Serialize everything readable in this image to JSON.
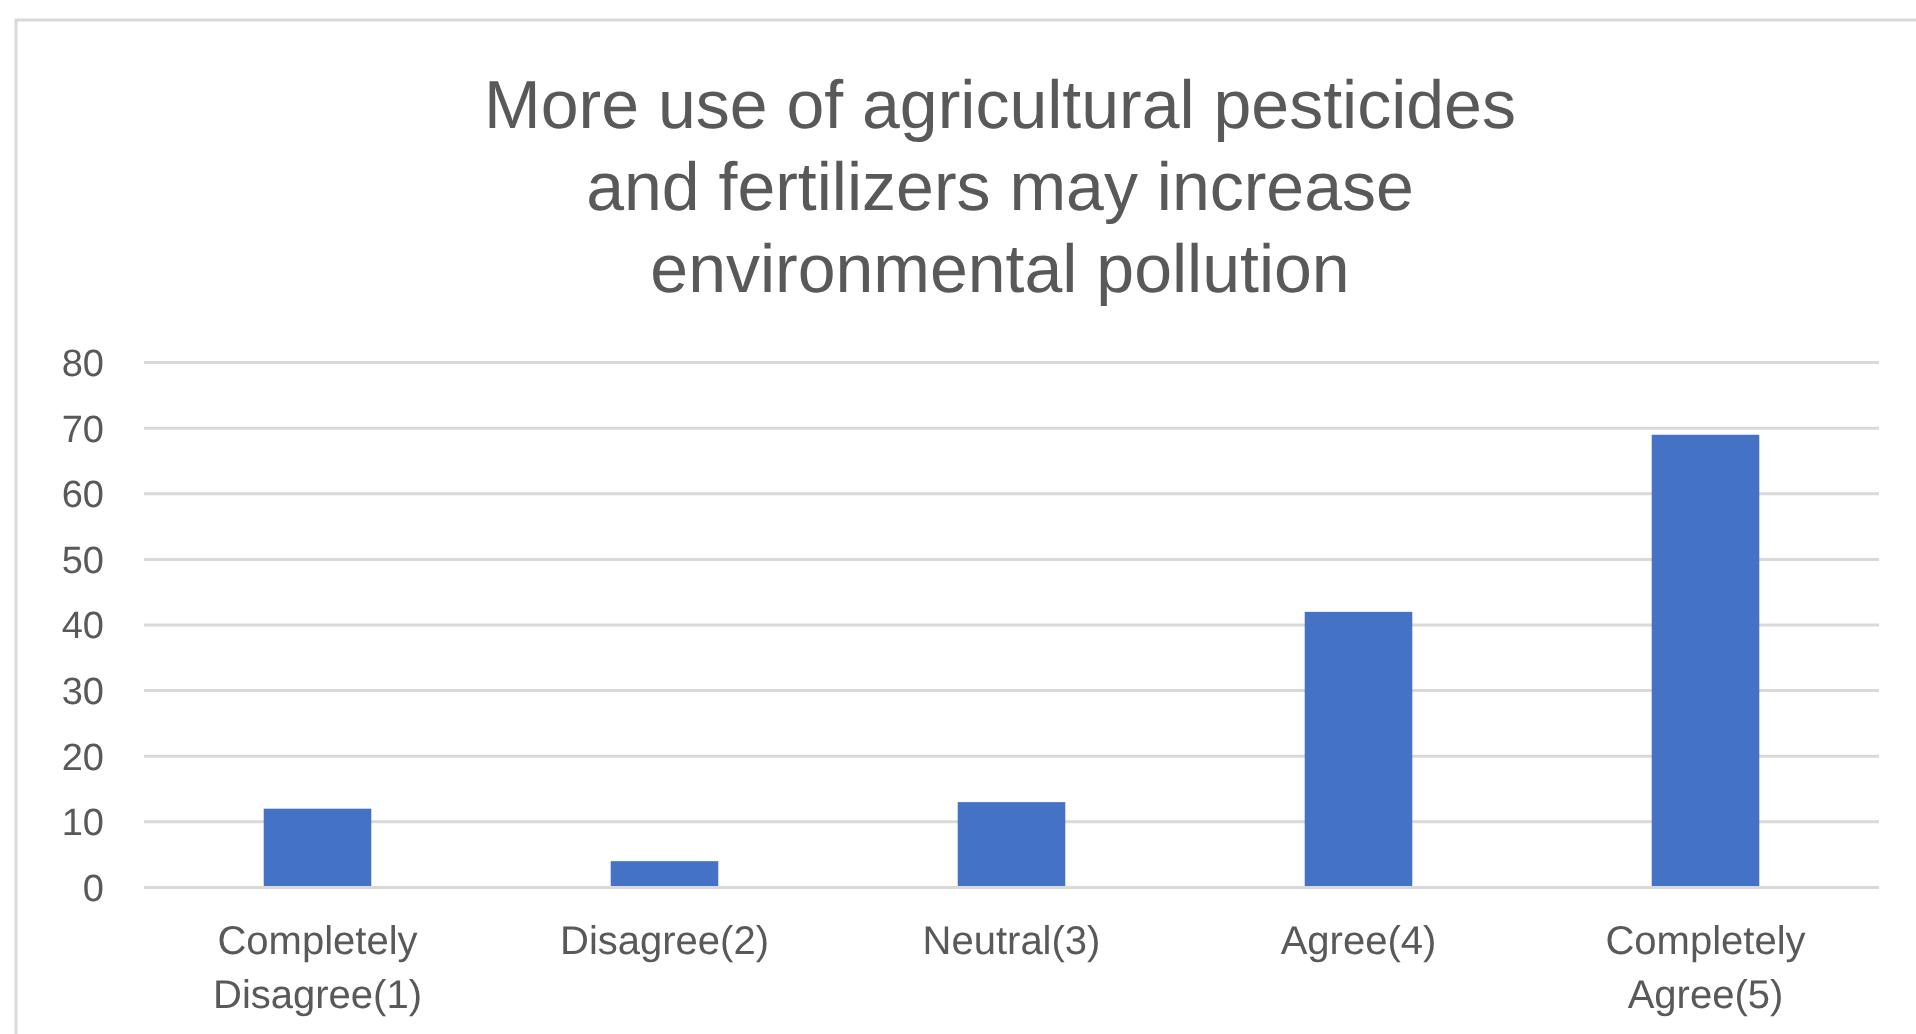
{
  "chart_data": {
    "type": "bar",
    "title": "More use of agricultural pesticides and fertilizers may increase environmental pollution",
    "categories": [
      "Completely Disagree(1)",
      "Disagree(2)",
      "Neutral(3)",
      "Agree(4)",
      "Completely Agree(5)"
    ],
    "values": [
      12,
      4,
      13,
      42,
      69
    ],
    "color": "#4472c4",
    "ylim": [
      0,
      80
    ],
    "yticks": [
      0,
      10,
      20,
      30,
      40,
      50,
      60,
      70,
      80
    ],
    "grid": "y"
  }
}
